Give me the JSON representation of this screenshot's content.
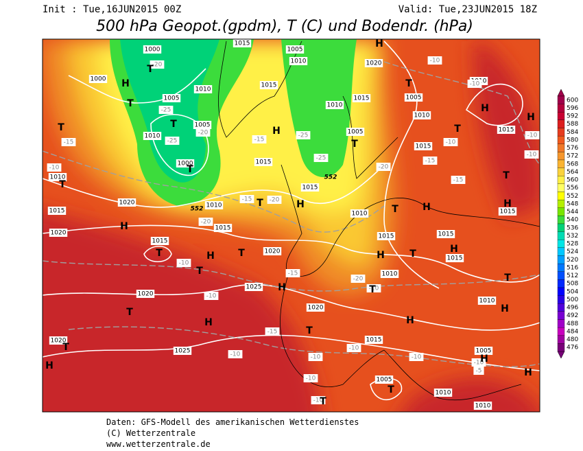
{
  "header": {
    "init": "Init : Tue,16JUN2015 00Z",
    "valid": "Valid: Tue,23JUN2015 18Z",
    "title": "500 hPa Geopot.(gpdm), T (C) und Bodendr. (hPa)"
  },
  "colorbar": {
    "levels": [
      600,
      596,
      592,
      588,
      584,
      580,
      576,
      572,
      568,
      564,
      560,
      556,
      552,
      548,
      544,
      540,
      536,
      532,
      528,
      524,
      520,
      516,
      512,
      508,
      504,
      500,
      496,
      492,
      488,
      484,
      480,
      476
    ],
    "colors": [
      "#a0004a",
      "#b4003c",
      "#c80032",
      "#dc1e1e",
      "#e63c1e",
      "#f05a1e",
      "#f07828",
      "#f5962d",
      "#fab432",
      "#fad23c",
      "#fff046",
      "#ffff64",
      "#ffff00",
      "#b4f000",
      "#78e600",
      "#3cdc3c",
      "#00d278",
      "#00dcb4",
      "#00e6e6",
      "#00c8ff",
      "#00a0ff",
      "#0078ff",
      "#0050ff",
      "#0028ff",
      "#0000ff",
      "#2800e6",
      "#5000dc",
      "#7800d2",
      "#a000c8",
      "#c800be",
      "#a000a0",
      "#780078"
    ]
  },
  "map_labels": [
    "1000",
    "1005",
    "1015",
    "1010",
    "1020",
    "1000",
    "1010",
    "1015",
    "1005",
    "1005",
    "1010",
    "1000",
    "1010",
    "1015",
    "1005",
    "1010",
    "1005",
    "1015",
    "1015",
    "1010",
    "1015",
    "1020",
    "1015",
    "1020",
    "1015",
    "1020",
    "1025",
    "1020",
    "1020",
    "1025",
    "1020",
    "1015",
    "1005",
    "1010",
    "1010",
    "1005",
    "1010",
    "1010",
    "1015",
    "1015",
    "1015",
    "1010",
    "1015",
    "1015",
    "1010",
    "1015",
    "1010",
    "-20",
    "-25",
    "-25",
    "-20",
    "-15",
    "-10",
    "-25",
    "-25",
    "-20",
    "-15",
    "-10",
    "-15",
    "-15",
    "-20",
    "-20",
    "-10",
    "-15",
    "-10",
    "-20",
    "-10",
    "-15",
    "-10",
    "-10",
    "-10",
    "-10",
    "-10",
    "-5",
    "-10",
    "-10",
    "-10",
    "-10",
    "-10",
    "-15",
    "-10",
    "552",
    "552",
    "H",
    "H",
    "H",
    "H",
    "H",
    "H",
    "H",
    "H",
    "H",
    "H",
    "H",
    "H",
    "H",
    "H",
    "H",
    "H",
    "H",
    "H",
    "H",
    "T",
    "T",
    "T",
    "T",
    "T",
    "T",
    "T",
    "T",
    "T",
    "T",
    "T",
    "T",
    "T",
    "T",
    "T",
    "T",
    "T",
    "T",
    "T",
    "T",
    "T",
    "T",
    "T"
  ],
  "footer": [
    "Daten: GFS-Modell des amerikanischen Wetterdienstes",
    "(C) Wetterzentrale",
    "www.wetterzentrale.de"
  ]
}
